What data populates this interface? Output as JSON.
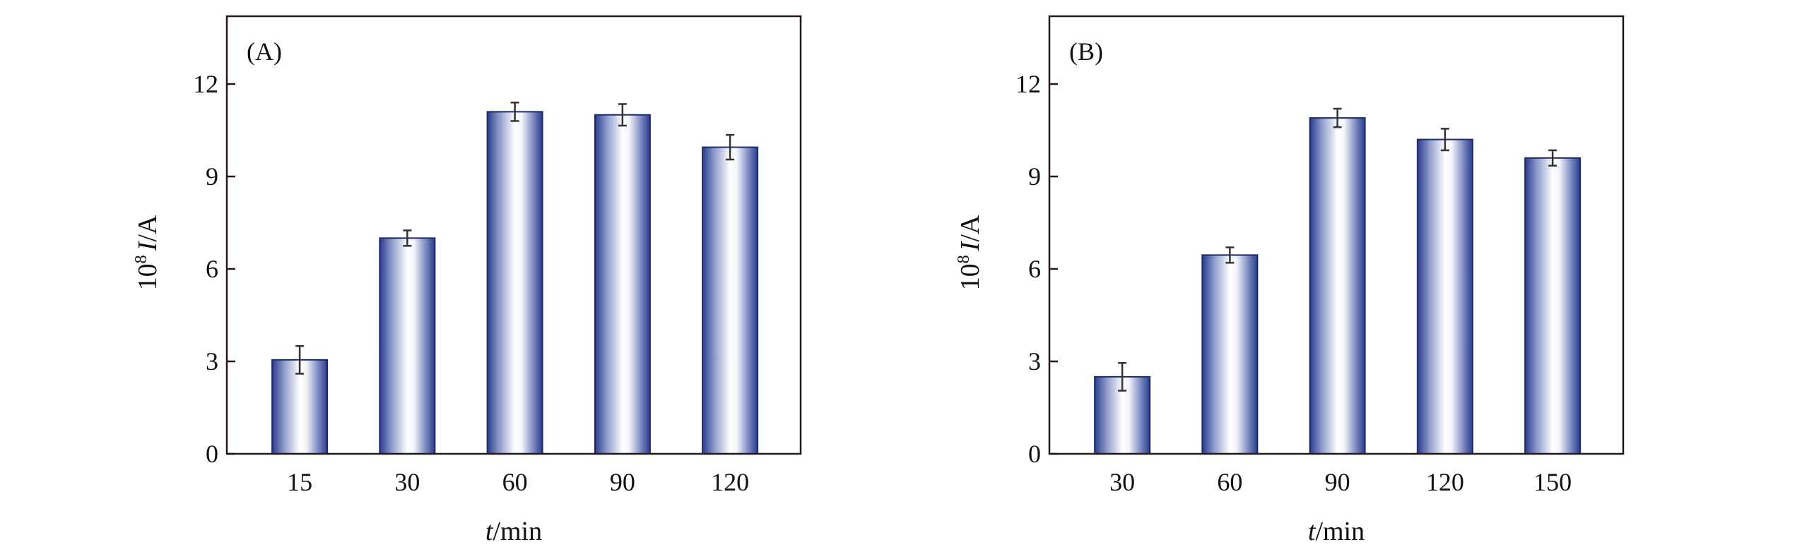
{
  "chart_data": [
    {
      "type": "bar",
      "panel_label": "(A)",
      "categories": [
        "15",
        "30",
        "60",
        "90",
        "120"
      ],
      "values": [
        3.05,
        7.0,
        11.1,
        11.0,
        9.95
      ],
      "errors": [
        0.45,
        0.25,
        0.3,
        0.35,
        0.4
      ],
      "xlabel_italic": "t",
      "xlabel_rest": "/min",
      "ylabel_prefix": "10",
      "ylabel_sup": "8",
      "ylabel_italic": "I",
      "ylabel_rest": "/A",
      "ylim": [
        0,
        14.2
      ],
      "yticks": [
        "0",
        "3",
        "6",
        "9",
        "12"
      ],
      "ytick_values": [
        0,
        3,
        6,
        9,
        12
      ],
      "grid": false
    },
    {
      "type": "bar",
      "panel_label": "(B)",
      "categories": [
        "30",
        "60",
        "90",
        "120",
        "150"
      ],
      "values": [
        2.5,
        6.45,
        10.9,
        10.2,
        9.6
      ],
      "errors": [
        0.45,
        0.25,
        0.3,
        0.35,
        0.25
      ],
      "xlabel_italic": "t",
      "xlabel_rest": "/min",
      "ylabel_prefix": "10",
      "ylabel_sup": "8",
      "ylabel_italic": "I",
      "ylabel_rest": "/A",
      "ylim": [
        0,
        14.2
      ],
      "yticks": [
        "0",
        "3",
        "6",
        "9",
        "12"
      ],
      "ytick_values": [
        0,
        3,
        6,
        9,
        12
      ],
      "grid": false
    }
  ],
  "colors": {
    "bar_edge": "#2a3c8f",
    "bar_center": "#ffffff",
    "axis": "#231815",
    "error": "#333333"
  }
}
